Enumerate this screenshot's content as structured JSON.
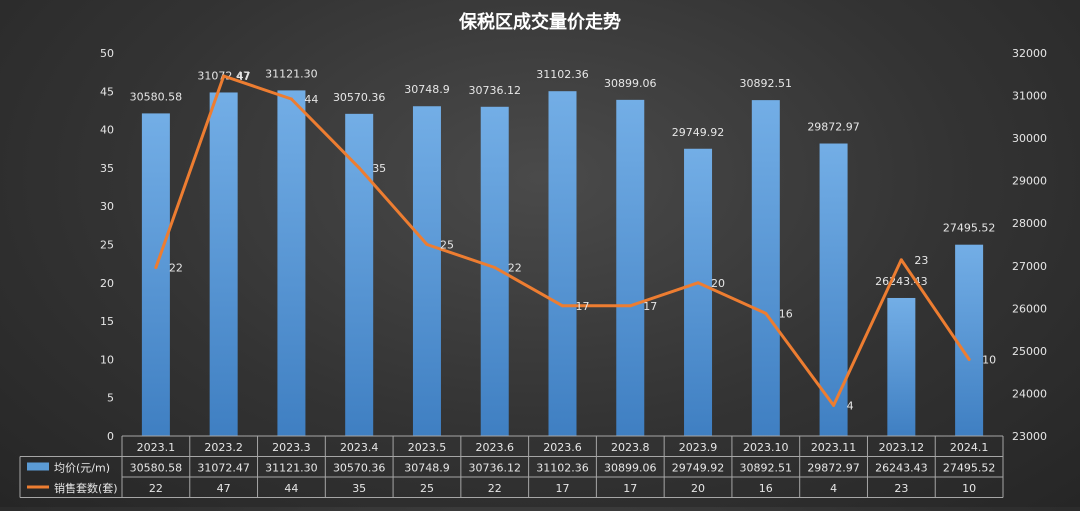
{
  "chart_data": {
    "type": "bar",
    "title": "保税区成交量价走势",
    "categories": [
      "2023.1",
      "2023.2",
      "2023.3",
      "2023.4",
      "2023.5",
      "2023.6",
      "2023.6",
      "2023.8",
      "2023.9",
      "2023.10",
      "2023.11",
      "2023.12",
      "2024.1"
    ],
    "series": [
      {
        "name": "均价(元/m)",
        "type": "bar",
        "axis": "right",
        "values": [
          30580.58,
          31072.47,
          31121.3,
          30570.36,
          30748.9,
          30736.12,
          31102.36,
          30899.06,
          29749.92,
          30892.51,
          29872.97,
          26243.43,
          27495.52
        ],
        "labels": [
          "30580.58",
          "31072.47",
          "31121.30",
          "30570.36",
          "30748.9",
          "30736.12",
          "31102.36",
          "30899.06",
          "29749.92",
          "30892.51",
          "29872.97",
          "26243.43",
          "27495.52"
        ],
        "table_labels": [
          "30580.58",
          "31072.47",
          "31121.30",
          "30570.36",
          "30748.9",
          "30736.12",
          "31102.36",
          "30899.06",
          "29749.92",
          "30892.51",
          "29872.97",
          "26243.43",
          "27495.52"
        ],
        "color": "#5b9bd5"
      },
      {
        "name": "销售套数(套)",
        "type": "line",
        "axis": "left",
        "values": [
          22,
          47,
          44,
          35,
          25,
          22,
          17,
          17,
          20,
          16,
          4,
          23,
          10
        ],
        "labels": [
          "22",
          "47",
          "44",
          "35",
          "25",
          "22",
          "17",
          "17",
          "20",
          "16",
          "4",
          "23",
          "10"
        ],
        "color": "#ed7d31"
      }
    ],
    "left_axis": {
      "min": 0,
      "max": 50,
      "step": 5,
      "ticks": [
        "0",
        "5",
        "10",
        "15",
        "20",
        "25",
        "30",
        "35",
        "40",
        "45",
        "50"
      ]
    },
    "right_axis": {
      "min": 23000,
      "max": 32000,
      "step": 1000,
      "ticks": [
        "23000",
        "24000",
        "25000",
        "26000",
        "27000",
        "28000",
        "29000",
        "30000",
        "31000",
        "32000"
      ]
    },
    "grid": false,
    "legend": "data-table-bottom"
  }
}
